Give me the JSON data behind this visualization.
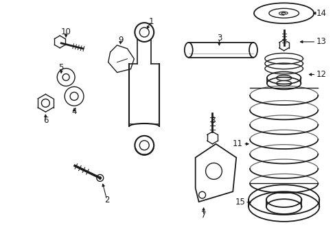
{
  "bg_color": "#ffffff",
  "line_color": "#1a1a1a",
  "fig_width": 4.89,
  "fig_height": 3.6,
  "dpi": 100,
  "label_font": 8.5
}
